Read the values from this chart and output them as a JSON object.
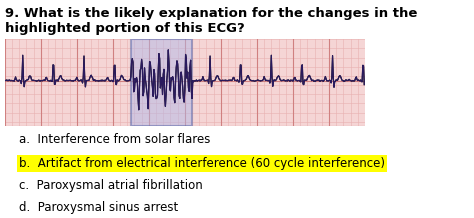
{
  "title": "9. What is the likely explanation for the changes in the highlighted portion of this ECG?",
  "title_fontsize": 9.5,
  "ecg_bg_color": "#f5d5d5",
  "ecg_grid_color": "#e8b0b0",
  "highlight_color": "#b0b8e8",
  "highlight_border": "#5566aa",
  "options": [
    {
      "label": "a.",
      "text": "Interference from solar flares",
      "highlight": false
    },
    {
      "label": "b.",
      "text": "Artifact from electrical interference (60 cycle interference)",
      "highlight": true
    },
    {
      "label": "c.",
      "text": "Paroxysmal atrial fibrillation",
      "highlight": false
    },
    {
      "label": "d.",
      "text": "Paroxysmal sinus arrest",
      "highlight": false
    }
  ],
  "option_fontsize": 8.5,
  "highlight_answer_color": "#ffff00",
  "text_color": "#000000"
}
